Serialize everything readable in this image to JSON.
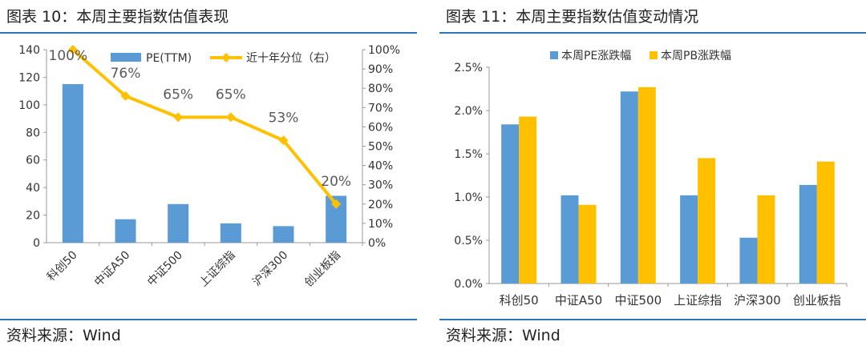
{
  "left": {
    "title": "图表 10：本周主要指数估值表现",
    "source": "资料来源：Wind",
    "chart_data": {
      "type": "bar+line",
      "categories": [
        "科创50",
        "中证A50",
        "中证500",
        "上证综指",
        "沪深300",
        "创业板指"
      ],
      "series": [
        {
          "name": "PE(TTM)",
          "kind": "bar",
          "axis": "left",
          "color": "#5b9bd5",
          "values": [
            115,
            17,
            28,
            14,
            12,
            34
          ]
        },
        {
          "name": "近十年分位（右）",
          "kind": "line",
          "axis": "right",
          "color": "#ffc000",
          "values": [
            100,
            76,
            65,
            65,
            53,
            20
          ]
        }
      ],
      "point_labels": [
        "100%",
        "76%",
        "65%",
        "65%",
        "53%",
        "20%"
      ],
      "y_left": {
        "min": 0,
        "max": 140,
        "ticks": [
          "0",
          "20",
          "40",
          "60",
          "80",
          "100",
          "120",
          "140"
        ]
      },
      "y_right": {
        "min": 0,
        "max": 100,
        "ticks": [
          "0%",
          "10%",
          "20%",
          "30%",
          "40%",
          "50%",
          "60%",
          "70%",
          "80%",
          "90%",
          "100%"
        ]
      },
      "legend": [
        "PE(TTM)",
        "近十年分位（右）"
      ]
    }
  },
  "right": {
    "title": "图表 11：本周主要指数估值变动情况",
    "source": "资料来源：Wind",
    "chart_data": {
      "type": "bar",
      "categories": [
        "科创50",
        "中证A50",
        "中证500",
        "上证综指",
        "沪深300",
        "创业板指"
      ],
      "series": [
        {
          "name": "本周PE涨跌幅",
          "color": "#5b9bd5",
          "values": [
            1.84,
            1.02,
            2.22,
            1.02,
            0.53,
            1.14
          ]
        },
        {
          "name": "本周PB涨跌幅",
          "color": "#ffc000",
          "values": [
            1.93,
            0.91,
            2.27,
            1.45,
            1.02,
            1.41
          ]
        }
      ],
      "y": {
        "min": 0,
        "max": 2.5,
        "ticks": [
          "0.0%",
          "0.5%",
          "1.0%",
          "1.5%",
          "2.0%",
          "2.5%"
        ]
      },
      "legend": [
        "本周PE涨跌幅",
        "本周PB涨跌幅"
      ]
    }
  }
}
